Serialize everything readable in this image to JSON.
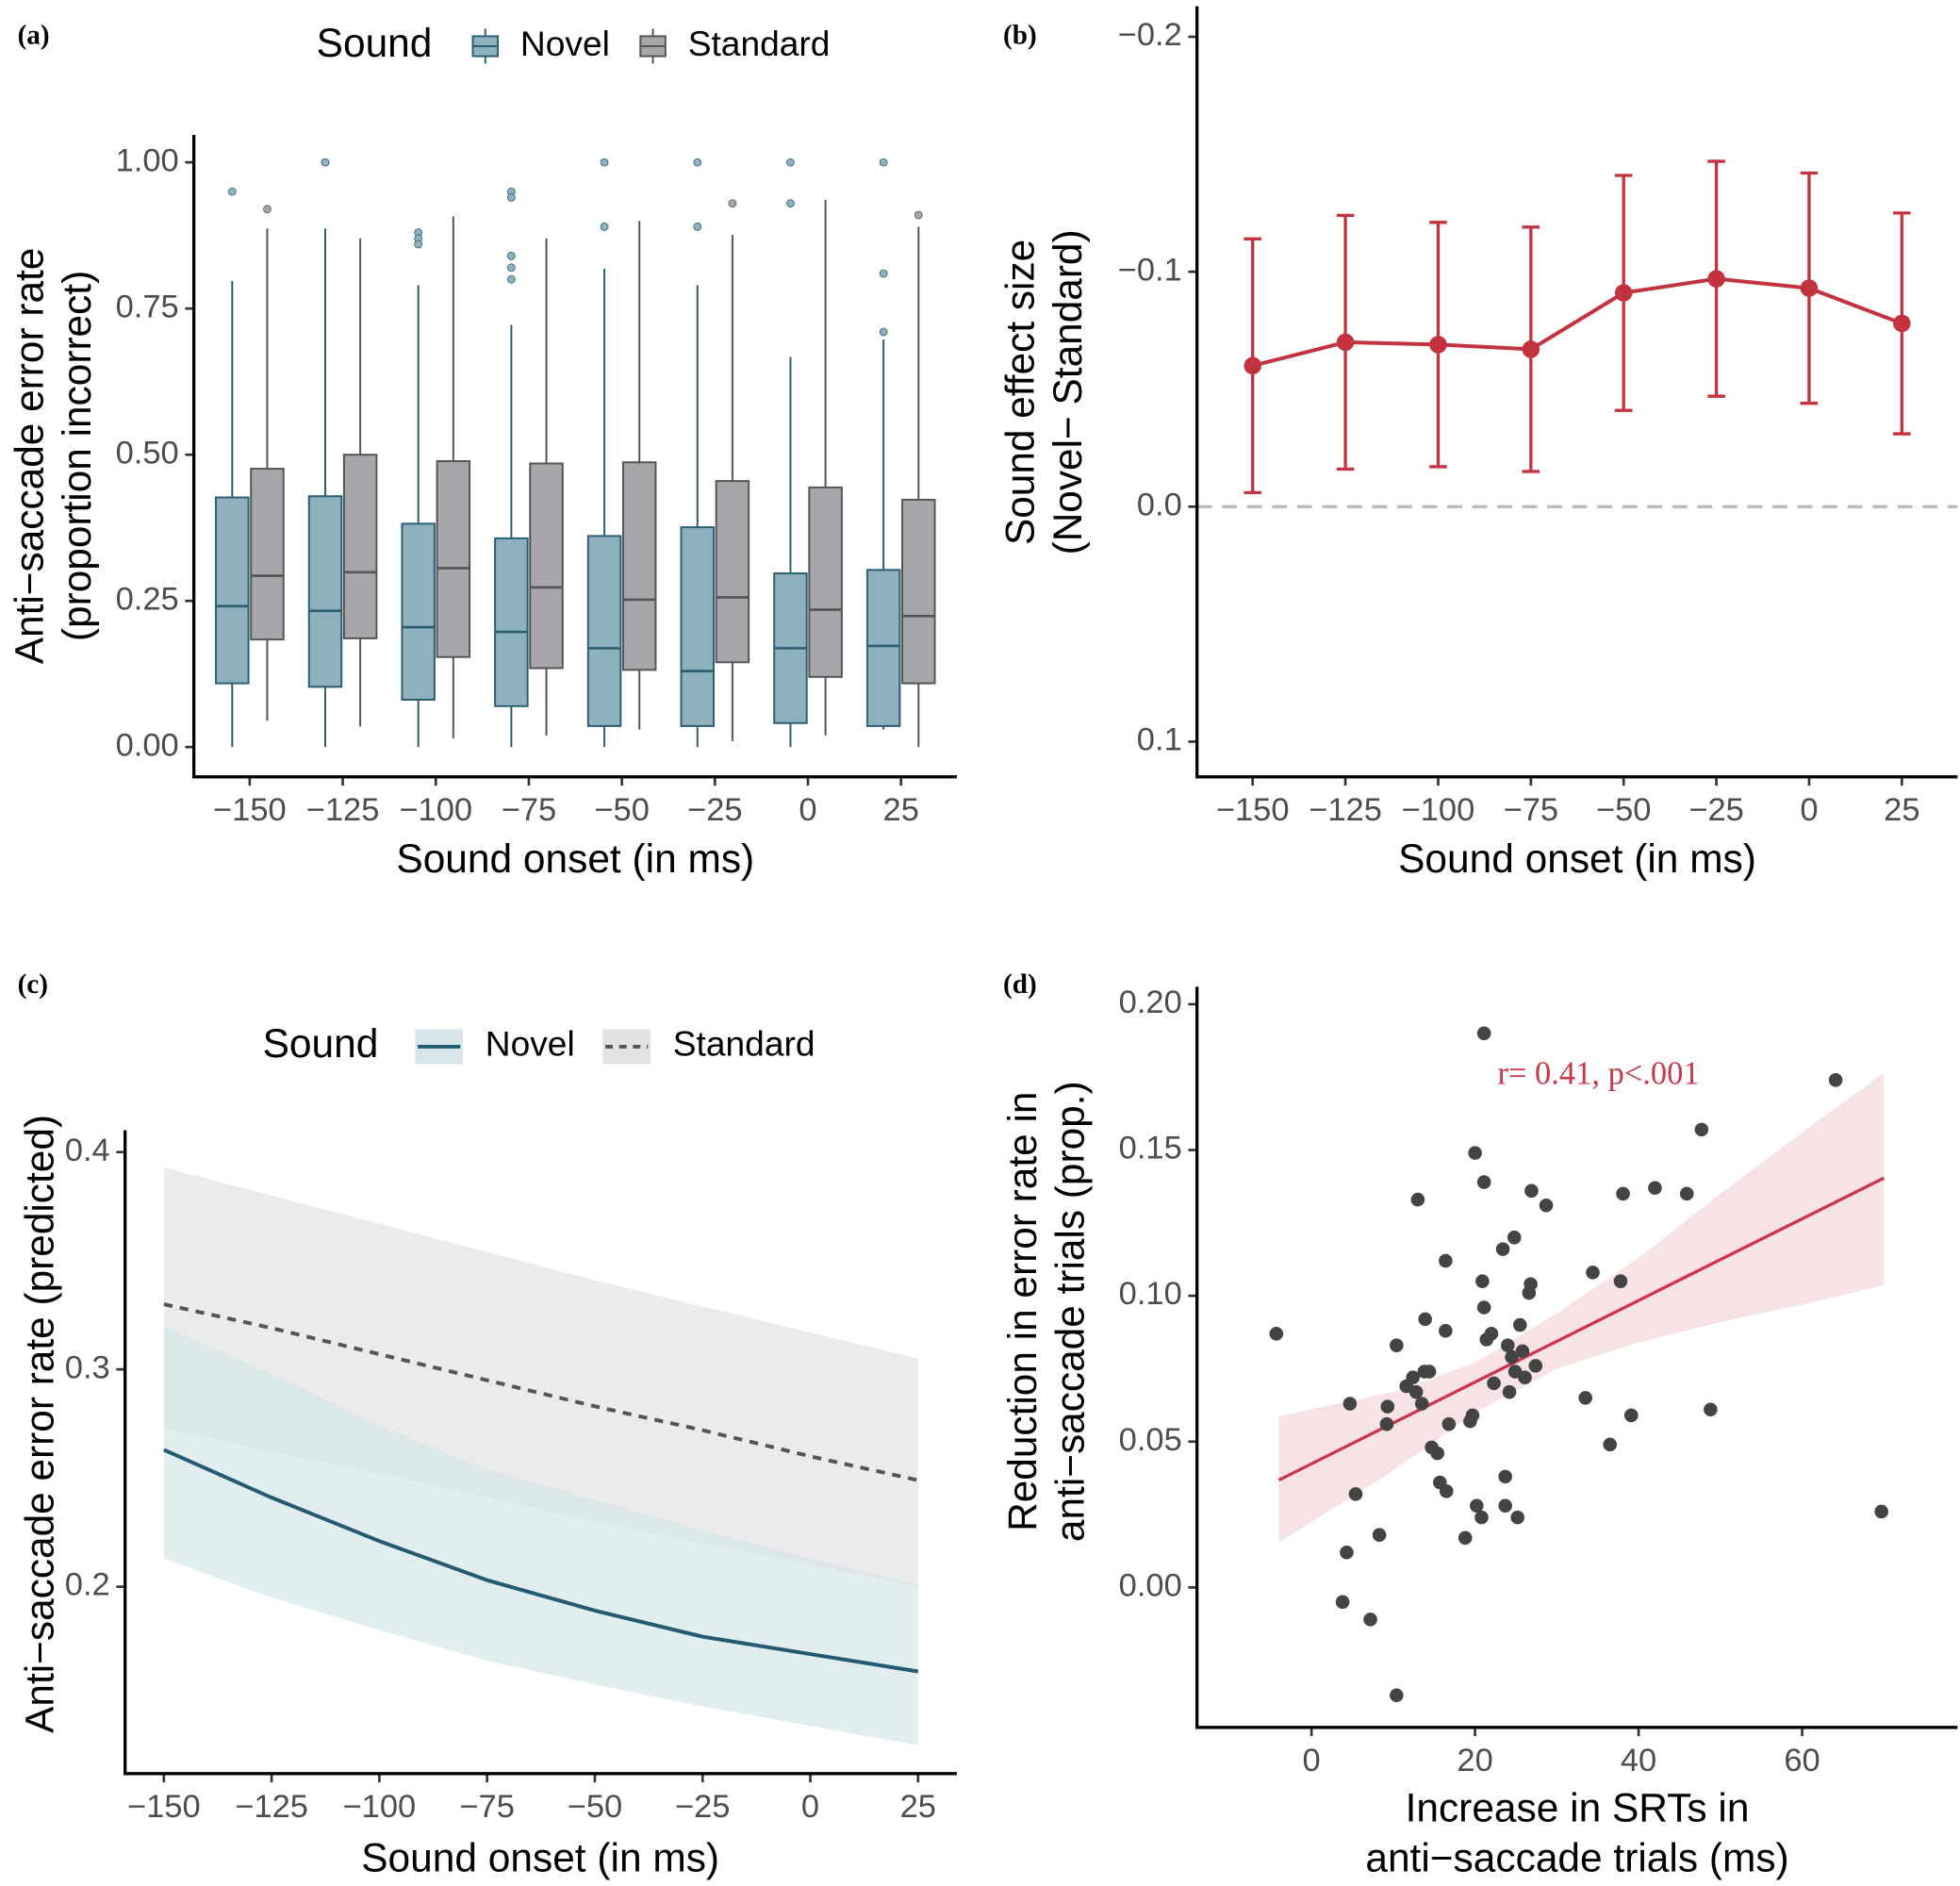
{
  "chart_data": [
    {
      "type": "box",
      "panel": "(a)",
      "legend_title": "Sound",
      "categories": [
        "−150",
        "−125",
        "−100",
        "−75",
        "−50",
        "−25",
        "0",
        "25"
      ],
      "series": [
        {
          "name": "Novel",
          "color": "#8fb0bd",
          "stroke": "#2b5f74",
          "whisker_low": [
            0,
            0,
            0,
            0,
            0,
            0,
            0,
            0.03
          ],
          "q1": [
            0.109,
            0.103,
            0.081,
            0.07,
            0.036,
            0.036,
            0.041,
            0.036
          ],
          "median": [
            0.241,
            0.233,
            0.205,
            0.197,
            0.169,
            0.13,
            0.169,
            0.173
          ],
          "q3": [
            0.427,
            0.429,
            0.382,
            0.357,
            0.361,
            0.376,
            0.297,
            0.303
          ],
          "whisker_high": [
            0.797,
            0.887,
            0.79,
            0.722,
            0.818,
            0.79,
            0.667,
            0.697
          ],
          "outliers": [
            [
              0.95
            ],
            [
              1.0,
              1.0
            ],
            [
              0.88,
              0.87,
              0.86
            ],
            [
              0.95,
              0.94,
              0.84,
              0.82,
              0.8
            ],
            [
              1.0,
              0.89
            ],
            [
              1.0,
              0.89
            ],
            [
              1.0,
              0.93
            ],
            [
              1.0,
              0.81,
              0.71
            ]
          ]
        },
        {
          "name": "Standard",
          "color": "#a8a6ab",
          "stroke": "#555555",
          "whisker_low": [
            0.045,
            0.035,
            0.015,
            0.02,
            0.03,
            0.01,
            0.02,
            0
          ],
          "q1": [
            0.184,
            0.186,
            0.154,
            0.135,
            0.132,
            0.145,
            0.12,
            0.109
          ],
          "median": [
            0.293,
            0.299,
            0.306,
            0.273,
            0.252,
            0.256,
            0.235,
            0.224
          ],
          "q3": [
            0.476,
            0.5,
            0.489,
            0.485,
            0.487,
            0.455,
            0.444,
            0.423
          ],
          "whisker_high": [
            0.887,
            0.87,
            0.908,
            0.87,
            0.9,
            0.876,
            0.936,
            0.89
          ],
          "outliers": [
            [
              0.92
            ],
            [],
            [],
            [],
            [],
            [
              0.93
            ],
            [],
            [
              0.91
            ]
          ]
        }
      ],
      "x_label": "Sound onset (in ms)",
      "y_label": [
        "Anti−saccade error rate",
        "(proportion incorrect)"
      ],
      "ylim": [
        -0.051,
        1.047
      ],
      "yticks": [
        {
          "value": 0,
          "label": "0.00"
        },
        0.25,
        {
          "value": 0.5,
          "label": "0.50"
        },
        0.75,
        {
          "value": 1,
          "label": "1.00"
        }
      ]
    },
    {
      "type": "errorline",
      "panel": "(b)",
      "color": "#c3323f",
      "x": [
        -150,
        -125,
        -100,
        -75,
        -50,
        -25,
        0,
        25
      ],
      "values": [
        -0.06,
        -0.07,
        -0.069,
        -0.067,
        -0.091,
        -0.097,
        -0.093,
        -0.078
      ],
      "errors": [
        0.054,
        0.054,
        0.052,
        0.052,
        0.05,
        0.05,
        0.049,
        0.047
      ],
      "hline": 0,
      "x_label": "Sound onset (in ms)",
      "y_label": [
        "Sound effect size",
        "(Novel− Standard)"
      ],
      "xlim": [
        -165,
        40
      ],
      "xticks": [
        {
          "value": -150,
          "label": "−150"
        },
        {
          "value": -125,
          "label": "−125"
        },
        {
          "value": -100,
          "label": "−100"
        },
        {
          "value": -75,
          "label": "−75"
        },
        {
          "value": -50,
          "label": "−50"
        },
        {
          "value": -25,
          "label": "−25"
        },
        0,
        25
      ],
      "ylim": [
        0.115,
        -0.213
      ],
      "yticks": [
        {
          "value": -0.2,
          "label": "−0.2"
        },
        {
          "value": -0.1,
          "label": "−0.1"
        },
        {
          "value": 0,
          "label": "0.0"
        },
        0.1
      ]
    },
    {
      "type": "ribbonline",
      "panel": "(c)",
      "legend_title": "Sound",
      "x": [
        -150,
        -125,
        -100,
        -75,
        -50,
        -25,
        0,
        25
      ],
      "series": [
        {
          "name": "Novel",
          "color": "#245b72",
          "band_color": "#d6e6ea",
          "dashed": false,
          "values": [
            0.263,
            0.241,
            0.221,
            0.203,
            0.189,
            0.177,
            0.169,
            0.161
          ],
          "lower": [
            0.213,
            0.195,
            0.18,
            0.166,
            0.155,
            0.145,
            0.136,
            0.127
          ],
          "upper": [
            0.32,
            0.298,
            0.274,
            0.254,
            0.24,
            0.226,
            0.213,
            0.201
          ]
        },
        {
          "name": "Standard",
          "color": "#555555",
          "band_color": "#e2e2e2",
          "dashed": true,
          "values": [
            0.33,
            0.319,
            0.307,
            0.295,
            0.283,
            0.272,
            0.26,
            0.249
          ],
          "lower": [
            0.273,
            0.262,
            0.252,
            0.241,
            0.23,
            0.22,
            0.21,
            0.2
          ],
          "upper": [
            0.393,
            0.38,
            0.367,
            0.354,
            0.341,
            0.329,
            0.317,
            0.305
          ]
        }
      ],
      "x_label": "Sound onset (in ms)",
      "y_label": [
        "Anti−saccade error rate (predicted)"
      ],
      "xlim": [
        -159,
        34
      ],
      "xticks": [
        {
          "value": -150,
          "label": "−150"
        },
        {
          "value": -125,
          "label": "−125"
        },
        {
          "value": -100,
          "label": "−100"
        },
        {
          "value": -75,
          "label": "−75"
        },
        {
          "value": -50,
          "label": "−50"
        },
        {
          "value": -25,
          "label": "−25"
        },
        0,
        25
      ],
      "ylim": [
        0.114,
        0.41
      ],
      "yticks": [
        0.2,
        0.3,
        0.4
      ]
    },
    {
      "type": "scatter",
      "panel": "(d)",
      "color": "#444444",
      "x": [
        -4.3,
        4.7,
        4.3,
        3.8,
        5.4,
        7.2,
        8.3,
        9.2,
        9.3,
        10.4,
        10.4,
        11.6,
        12.4,
        13.0,
        12.8,
        13.8,
        14.4,
        13.9,
        13.5,
        14.7,
        15.4,
        15.7,
        16.4,
        16.4,
        16.5,
        16.8,
        18.8,
        19.4,
        19.7,
        20.0,
        20.2,
        20.8,
        21.1,
        21.1,
        20.9,
        21.1,
        21.4,
        22.0,
        22.3,
        23.4,
        23.7,
        23.7,
        24.0,
        24.2,
        24.5,
        24.8,
        24.9,
        25.2,
        25.5,
        25.8,
        26.1,
        26.6,
        26.8,
        26.9,
        27.4,
        28.7,
        33.5,
        34.4,
        36.5,
        37.8,
        38.1,
        39.1,
        42.0,
        45.9,
        47.7,
        48.8,
        64.1,
        69.7
      ],
      "y": [
        0.087,
        0.063,
        0.012,
        -0.005,
        0.032,
        -0.011,
        0.018,
        0.056,
        0.062,
        0.083,
        -0.037,
        0.069,
        0.072,
        0.133,
        0.067,
        0.074,
        0.074,
        0.092,
        0.063,
        0.048,
        0.046,
        0.036,
        0.112,
        0.088,
        0.033,
        0.056,
        0.017,
        0.057,
        0.059,
        0.149,
        0.028,
        0.024,
        0.19,
        0.139,
        0.105,
        0.096,
        0.085,
        0.087,
        0.07,
        0.116,
        0.038,
        0.028,
        0.083,
        0.067,
        0.079,
        0.12,
        0.074,
        0.024,
        0.09,
        0.081,
        0.072,
        0.101,
        0.104,
        0.136,
        0.076,
        0.131,
        0.065,
        0.108,
        0.049,
        0.105,
        0.135,
        0.059,
        0.137,
        0.135,
        0.157,
        0.061,
        0.174,
        0.026
      ],
      "fit": {
        "color": "#c8374a",
        "band_color": "#f5dcdf",
        "x": [
          -4,
          10,
          20,
          30,
          40,
          50,
          60,
          70
        ],
        "values": [
          0.0368,
          0.0564,
          0.0704,
          0.0844,
          0.0984,
          0.1124,
          0.1264,
          0.1404
        ],
        "lower": [
          0.0154,
          0.04,
          0.06,
          0.075,
          0.084,
          0.091,
          0.097,
          0.1036
        ],
        "upper": [
          0.0587,
          0.067,
          0.077,
          0.094,
          0.113,
          0.135,
          0.156,
          0.1765
        ]
      },
      "annotation": "r= 0.41, p<.001",
      "x_label": [
        "Increase in SRTs in",
        "anti−saccade trials (ms)"
      ],
      "y_label": [
        "Reduction in error rate in",
        "anti−saccade trials (prop.)"
      ],
      "xlim": [
        -14,
        79
      ],
      "xticks": [
        0,
        20,
        40,
        60
      ],
      "ylim": [
        -0.048,
        0.206
      ],
      "yticks": [
        {
          "value": 0,
          "label": "0.00"
        },
        0.05,
        {
          "value": 0.1,
          "label": "0.10"
        },
        0.15,
        {
          "value": 0.2,
          "label": "0.20"
        }
      ]
    }
  ]
}
